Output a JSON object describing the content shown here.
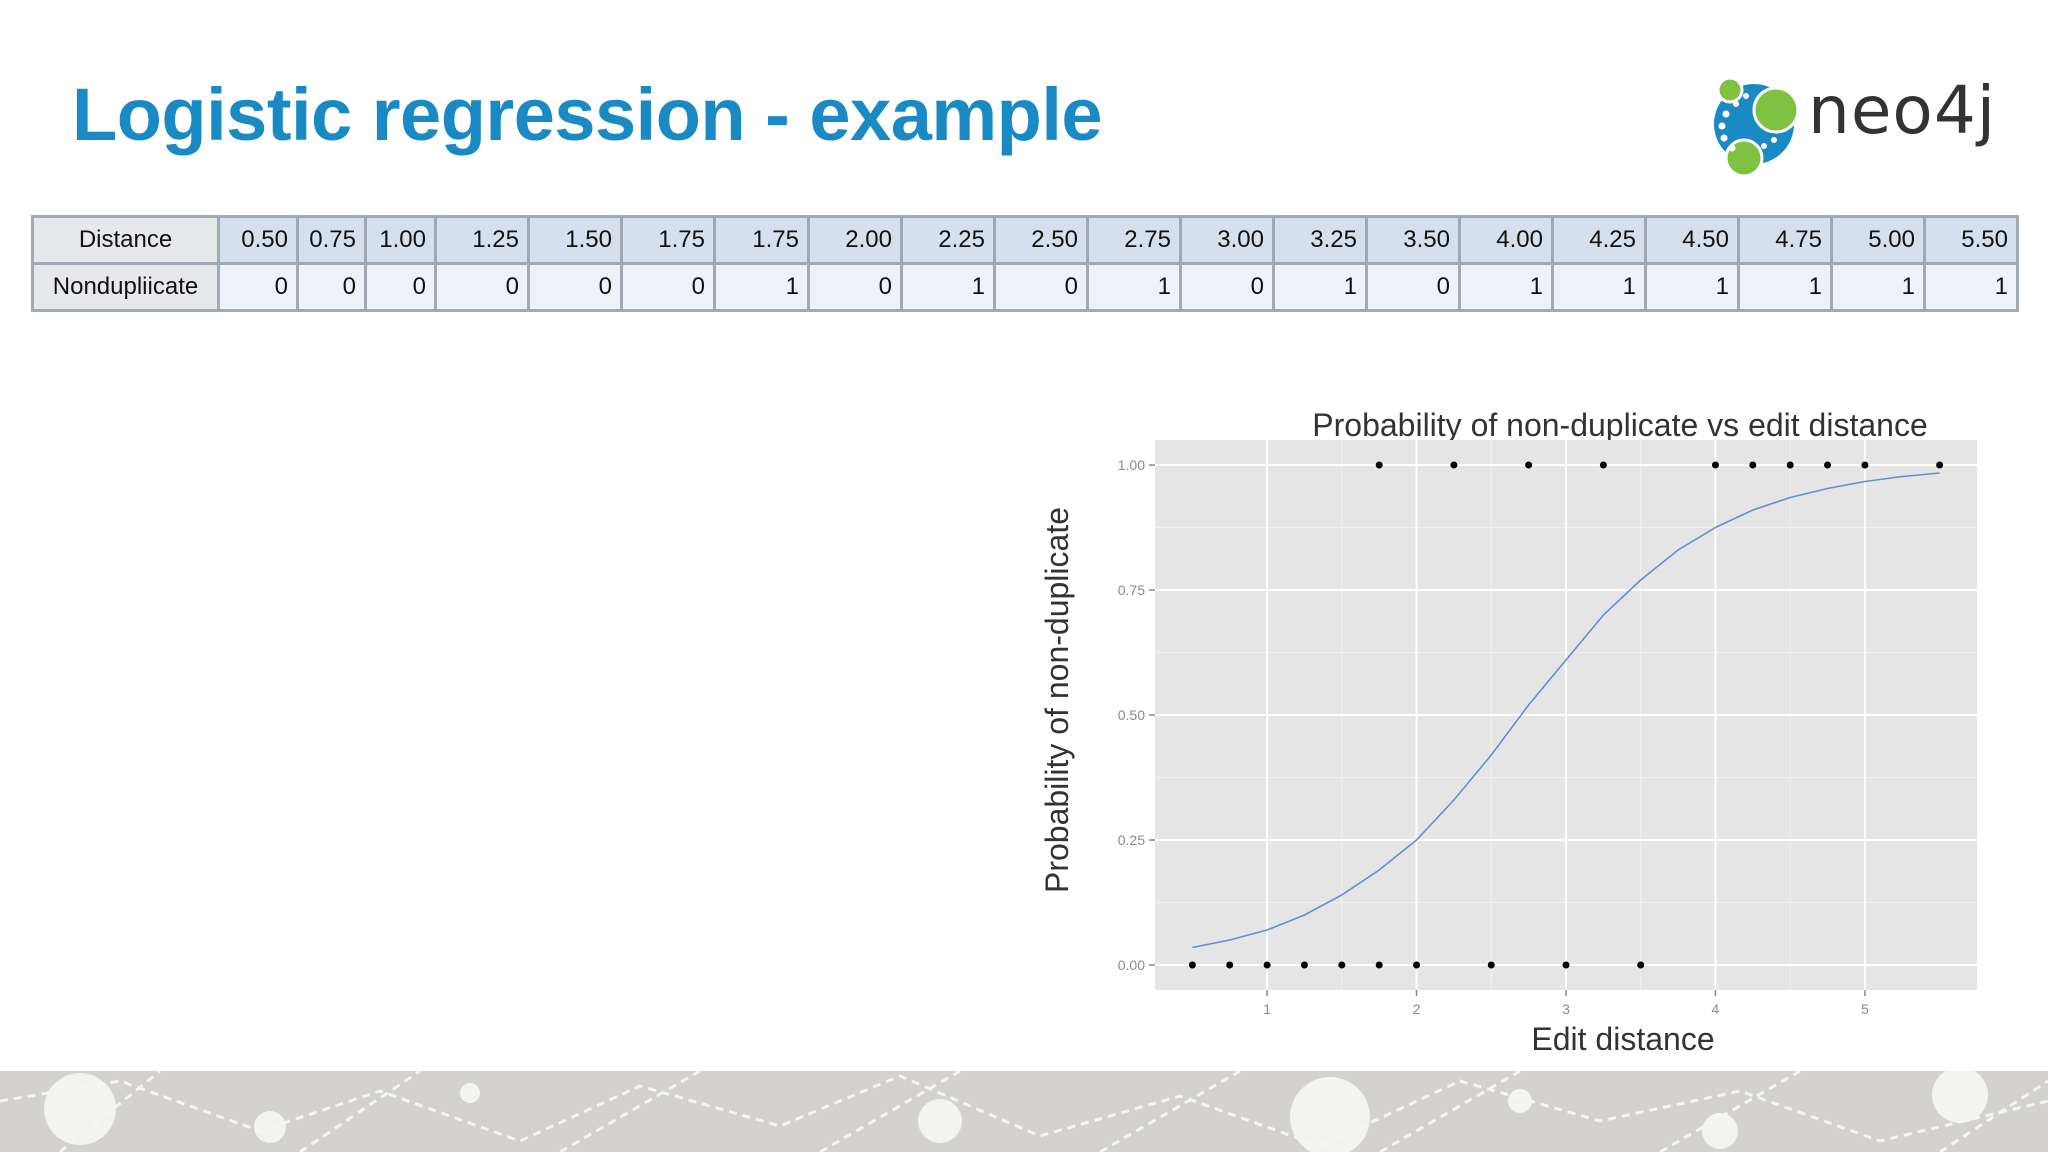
{
  "slide": {
    "title": "Logistic regression - example",
    "title_color": "#1a8ac4"
  },
  "logo": {
    "text": "neo4j",
    "icon": "neo4j-graph-logo"
  },
  "table": {
    "row_labels": [
      "Distance",
      "Nondupliicate"
    ],
    "distance": [
      "0.50",
      "0.75",
      "1.00",
      "1.25",
      "1.50",
      "1.75",
      "1.75",
      "2.00",
      "2.25",
      "2.50",
      "2.75",
      "3.00",
      "3.25",
      "3.50",
      "4.00",
      "4.25",
      "4.50",
      "4.75",
      "5.00",
      "5.50"
    ],
    "nonduplicate": [
      "0",
      "0",
      "0",
      "0",
      "0",
      "0",
      "1",
      "0",
      "1",
      "0",
      "1",
      "0",
      "1",
      "0",
      "1",
      "1",
      "1",
      "1",
      "1",
      "1"
    ]
  },
  "chart_data": {
    "type": "scatter",
    "title": "Probability of non-duplicate vs edit distance",
    "xlabel": "Edit distance",
    "ylabel": "Probability of non-duplicate",
    "xlim": [
      0.25,
      5.75
    ],
    "ylim": [
      -0.05,
      1.05
    ],
    "x_ticks": [
      1,
      2,
      3,
      4,
      5
    ],
    "y_ticks": [
      0,
      0.25,
      0.5,
      0.75,
      1.0
    ],
    "y_tick_labels": [
      "0.00",
      "0.25",
      "0.50",
      "0.75",
      "1.00"
    ],
    "grid": true,
    "colors": {
      "panel": "#e5e5e5",
      "curve": "#6b8ad6",
      "points": "#000000"
    },
    "points": {
      "x": [
        0.5,
        0.75,
        1.0,
        1.25,
        1.5,
        1.75,
        1.75,
        2.0,
        2.25,
        2.5,
        2.75,
        3.0,
        3.25,
        3.5,
        4.0,
        4.25,
        4.5,
        4.75,
        5.0,
        5.5
      ],
      "y": [
        0,
        0,
        0,
        0,
        0,
        0,
        1,
        0,
        1,
        0,
        1,
        0,
        1,
        0,
        1,
        1,
        1,
        1,
        1,
        1
      ]
    },
    "fitted_curve": {
      "x": [
        0.5,
        0.75,
        1.0,
        1.25,
        1.5,
        1.75,
        2.0,
        2.25,
        2.5,
        2.75,
        3.0,
        3.25,
        3.5,
        3.75,
        4.0,
        4.25,
        4.5,
        4.75,
        5.0,
        5.25,
        5.5
      ],
      "y": [
        0.035,
        0.05,
        0.07,
        0.1,
        0.14,
        0.19,
        0.25,
        0.33,
        0.42,
        0.52,
        0.61,
        0.7,
        0.77,
        0.83,
        0.875,
        0.91,
        0.935,
        0.953,
        0.967,
        0.977,
        0.984
      ]
    }
  }
}
